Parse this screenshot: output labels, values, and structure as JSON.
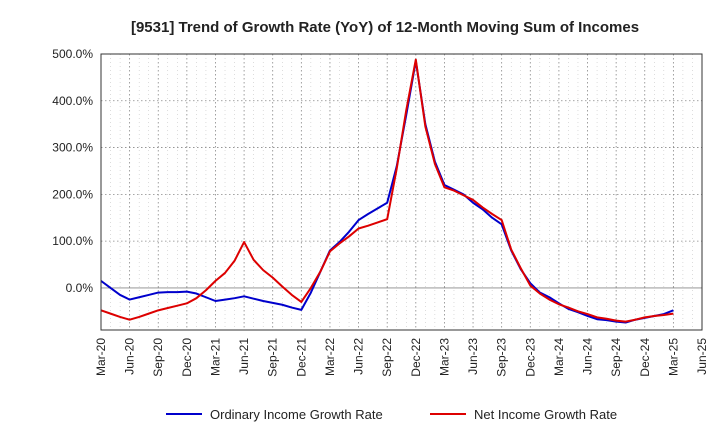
{
  "chart_data": {
    "type": "line",
    "title": "[9531]  Trend of Growth Rate (YoY) of 12-Month Moving Sum of Incomes",
    "xlabel": "",
    "ylabel": "",
    "ylim": [
      -90,
      500
    ],
    "yticks": [
      0,
      100,
      200,
      300,
      400,
      500
    ],
    "ytick_labels": [
      "0.0%",
      "100.0%",
      "200.0%",
      "300.0%",
      "400.0%",
      "500.0%"
    ],
    "x": [
      "2020-03",
      "2020-04",
      "2020-05",
      "2020-06",
      "2020-07",
      "2020-08",
      "2020-09",
      "2020-10",
      "2020-11",
      "2020-12",
      "2021-01",
      "2021-02",
      "2021-03",
      "2021-04",
      "2021-05",
      "2021-06",
      "2021-07",
      "2021-08",
      "2021-09",
      "2021-10",
      "2021-11",
      "2021-12",
      "2022-01",
      "2022-02",
      "2022-03",
      "2022-04",
      "2022-05",
      "2022-06",
      "2022-07",
      "2022-08",
      "2022-09",
      "2022-10",
      "2022-11",
      "2022-12",
      "2023-01",
      "2023-02",
      "2023-03",
      "2023-04",
      "2023-05",
      "2023-06",
      "2023-07",
      "2023-08",
      "2023-09",
      "2023-10",
      "2023-11",
      "2023-12",
      "2024-01",
      "2024-02",
      "2024-03",
      "2024-04",
      "2024-05",
      "2024-06",
      "2024-07",
      "2024-08",
      "2024-09",
      "2024-10",
      "2024-11",
      "2024-12",
      "2025-01",
      "2025-02",
      "2025-03"
    ],
    "x_tick_labels": [
      "Mar-20",
      "Jun-20",
      "Sep-20",
      "Dec-20",
      "Mar-21",
      "Jun-21",
      "Sep-21",
      "Dec-21",
      "Mar-22",
      "Jun-22",
      "Sep-22",
      "Dec-22",
      "Mar-23",
      "Jun-23",
      "Sep-23",
      "Dec-23",
      "Mar-24",
      "Jun-24",
      "Sep-24",
      "Dec-24",
      "Mar-25",
      "Jun-25"
    ],
    "x_count": 64,
    "grid": true,
    "legend_position": "bottom",
    "series": [
      {
        "name": "Ordinary Income Growth Rate",
        "color": "#0000cc",
        "values": [
          15,
          0,
          -15,
          -25,
          -20,
          -15,
          -10,
          -9,
          -9,
          -8,
          -12,
          -20,
          -28,
          -25,
          -22,
          -18,
          -23,
          -28,
          -32,
          -36,
          -42,
          -47,
          -10,
          35,
          80,
          98,
          120,
          145,
          158,
          170,
          182,
          260,
          370,
          485,
          350,
          270,
          220,
          210,
          200,
          182,
          168,
          150,
          136,
          80,
          40,
          10,
          -10,
          -20,
          -33,
          -45,
          -52,
          -60,
          -67,
          -69,
          -72,
          -74,
          -68,
          -64,
          -60,
          -56,
          -48
        ]
      },
      {
        "name": "Net Income Growth Rate",
        "color": "#dd0000",
        "values": [
          -48,
          -55,
          -62,
          -68,
          -62,
          -55,
          -48,
          -43,
          -38,
          -33,
          -22,
          -5,
          15,
          32,
          58,
          98,
          60,
          38,
          22,
          3,
          -15,
          -30,
          0,
          35,
          78,
          95,
          110,
          127,
          133,
          140,
          147,
          255,
          380,
          488,
          345,
          265,
          215,
          208,
          198,
          188,
          172,
          158,
          145,
          82,
          42,
          5,
          -12,
          -25,
          -35,
          -42,
          -50,
          -56,
          -63,
          -66,
          -70,
          -72,
          -68,
          -63,
          -60,
          -58,
          -55
        ]
      }
    ]
  }
}
